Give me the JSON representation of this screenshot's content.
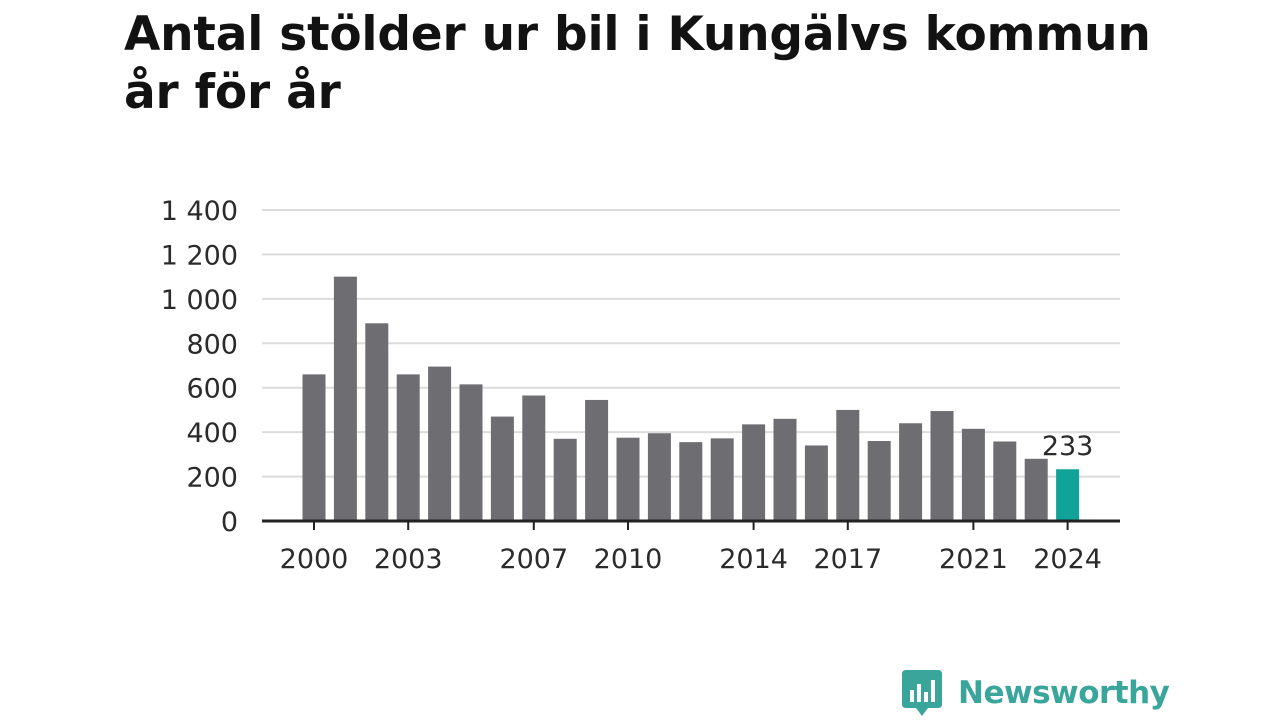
{
  "title": "Antal stölder ur bil i Kungälvs kommun år för år",
  "brand": {
    "name": "Newsworthy",
    "icon": "newsworthy-logo-icon"
  },
  "colors": {
    "bar": "#6e6d72",
    "highlight": "#11a39a",
    "grid": "#dcdcdc",
    "axis": "#222222",
    "brand": "#3aa59b"
  },
  "chart_data": {
    "type": "bar",
    "title": "Antal stölder ur bil i Kungälvs kommun år för år",
    "xlabel": "",
    "ylabel": "",
    "categories": [
      "2000",
      "2001",
      "2002",
      "2003",
      "2004",
      "2005",
      "2006",
      "2007",
      "2008",
      "2009",
      "2010",
      "2011",
      "2012",
      "2013",
      "2014",
      "2015",
      "2016",
      "2017",
      "2018",
      "2019",
      "2020",
      "2021",
      "2022",
      "2023",
      "2024"
    ],
    "values": [
      660,
      1100,
      890,
      660,
      695,
      615,
      470,
      565,
      370,
      545,
      375,
      395,
      355,
      372,
      435,
      460,
      340,
      500,
      360,
      440,
      495,
      415,
      358,
      280,
      233
    ],
    "ylim": [
      0,
      1400
    ],
    "yticks": [
      0,
      200,
      400,
      600,
      800,
      1000,
      1200,
      1400
    ],
    "ytick_labels": [
      "0",
      "200",
      "400",
      "600",
      "800",
      "1 000",
      "1 200",
      "1 400"
    ],
    "xtick_labels": [
      "2000",
      "2003",
      "2007",
      "2010",
      "2014",
      "2017",
      "2021",
      "2024"
    ],
    "highlight_category": "2024",
    "highlight_label": "233",
    "grid": true,
    "legend": "none"
  }
}
